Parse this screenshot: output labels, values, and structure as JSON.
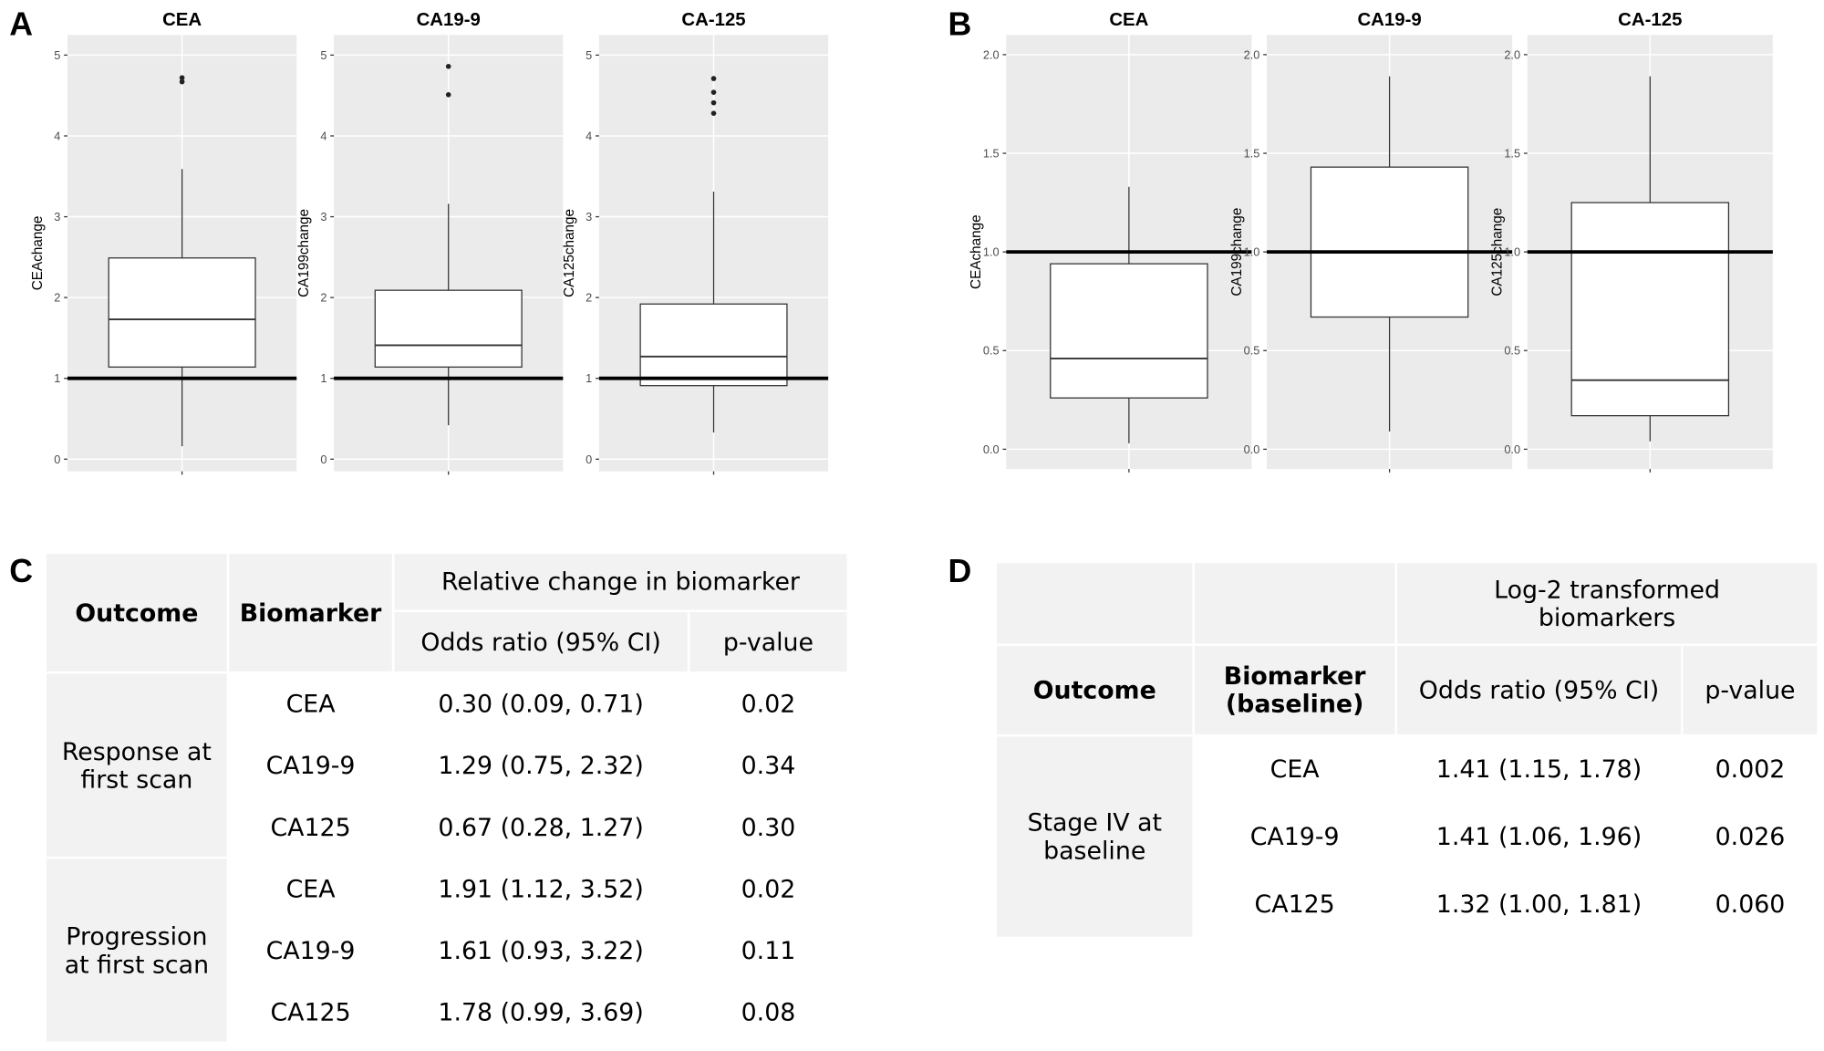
{
  "panel_labels": [
    "A",
    "B",
    "C",
    "D"
  ],
  "chart_data": [
    {
      "type": "box",
      "title": "CEA",
      "ylabel": "CEAchange",
      "ylim": [
        -0.15,
        5.25
      ],
      "yticks": [
        0,
        1,
        2,
        3,
        4,
        5
      ],
      "grid": true,
      "hline": 1,
      "box": {
        "min": 0.16,
        "q1": 1.14,
        "median": 1.73,
        "q3": 2.49,
        "max": 3.59,
        "outliers": [
          4.72,
          4.67
        ]
      }
    },
    {
      "type": "box",
      "title": "CA19-9",
      "ylabel": "CA199change",
      "ylim": [
        -0.15,
        5.25
      ],
      "yticks": [
        0,
        1,
        2,
        3,
        4,
        5
      ],
      "grid": true,
      "hline": 1,
      "box": {
        "min": 0.42,
        "q1": 1.14,
        "median": 1.41,
        "q3": 2.09,
        "max": 3.16,
        "outliers": [
          4.86,
          4.51
        ]
      }
    },
    {
      "type": "box",
      "title": "CA-125",
      "ylabel": "CA125change",
      "ylim": [
        -0.15,
        5.25
      ],
      "yticks": [
        0,
        1,
        2,
        3,
        4,
        5
      ],
      "grid": true,
      "hline": 1,
      "box": {
        "min": 0.33,
        "q1": 0.91,
        "median": 1.27,
        "q3": 1.92,
        "max": 3.31,
        "outliers": [
          4.71,
          4.54,
          4.41,
          4.28
        ]
      }
    },
    {
      "type": "box",
      "title": "CEA",
      "ylabel": "CEAchange",
      "ylim": [
        -0.1,
        2.1
      ],
      "yticks": [
        {
          "value": 0,
          "label": "0.0"
        },
        0.5,
        {
          "value": 1,
          "label": "1.0"
        },
        1.5,
        {
          "value": 2,
          "label": "2.0"
        }
      ],
      "grid": true,
      "hline": 1,
      "box": {
        "min": 0.03,
        "q1": 0.26,
        "median": 0.46,
        "q3": 0.94,
        "max": 1.33,
        "outliers": []
      }
    },
    {
      "type": "box",
      "title": "CA19-9",
      "ylabel": "CA199change",
      "ylim": [
        -0.1,
        2.1
      ],
      "yticks": [
        {
          "value": 0,
          "label": "0.0"
        },
        0.5,
        {
          "value": 1,
          "label": "1.0"
        },
        1.5,
        {
          "value": 2,
          "label": "2.0"
        }
      ],
      "grid": true,
      "hline": 1,
      "box": {
        "min": 0.09,
        "q1": 0.67,
        "median": 1.0,
        "q3": 1.43,
        "max": 1.89,
        "outliers": []
      }
    },
    {
      "type": "box",
      "title": "CA-125",
      "ylabel": "CA125change",
      "ylim": [
        -0.1,
        2.1
      ],
      "yticks": [
        {
          "value": 0,
          "label": "0.0"
        },
        0.5,
        {
          "value": 1,
          "label": "1.0"
        },
        1.5,
        {
          "value": 2,
          "label": "2.0"
        }
      ],
      "grid": true,
      "hline": 1,
      "box": {
        "min": 0.04,
        "q1": 0.17,
        "median": 0.35,
        "q3": 1.25,
        "max": 1.89,
        "outliers": []
      }
    }
  ],
  "tables": [
    {
      "header": {
        "outcome": "Outcome",
        "biomarker": "Biomarker",
        "group": "Relative change in biomarker",
        "odds": "Odds ratio (95% CI)",
        "p": "p-value"
      },
      "groups": [
        {
          "outcome": "Response at first scan",
          "rows": [
            [
              "CEA",
              "0.30 (0.09, 0.71)",
              "0.02"
            ],
            [
              "CA19-9",
              "1.29 (0.75, 2.32)",
              "0.34"
            ],
            [
              "CA125",
              "0.67 (0.28, 1.27)",
              "0.30"
            ]
          ]
        },
        {
          "outcome": "Progression at first scan",
          "rows": [
            [
              "CEA",
              "1.91 (1.12, 3.52)",
              "0.02"
            ],
            [
              "CA19-9",
              "1.61 (0.93, 3.22)",
              "0.11"
            ],
            [
              "CA125",
              "1.78 (0.99, 3.69)",
              "0.08"
            ]
          ]
        }
      ]
    },
    {
      "header": {
        "outcome": "Outcome",
        "biomarker": "Biomarker (baseline)",
        "group": "Log-2 transformed biomarkers",
        "odds": "Odds ratio (95% CI)",
        "p": "p-value"
      },
      "groups": [
        {
          "outcome": "Stage IV at baseline",
          "rows": [
            [
              "CEA",
              "1.41 (1.15, 1.78)",
              "0.002"
            ],
            [
              "CA19-9",
              "1.41 (1.06, 1.96)",
              "0.026"
            ],
            [
              "CA125",
              "1.32 (1.00, 1.81)",
              "0.060"
            ]
          ]
        }
      ]
    }
  ]
}
